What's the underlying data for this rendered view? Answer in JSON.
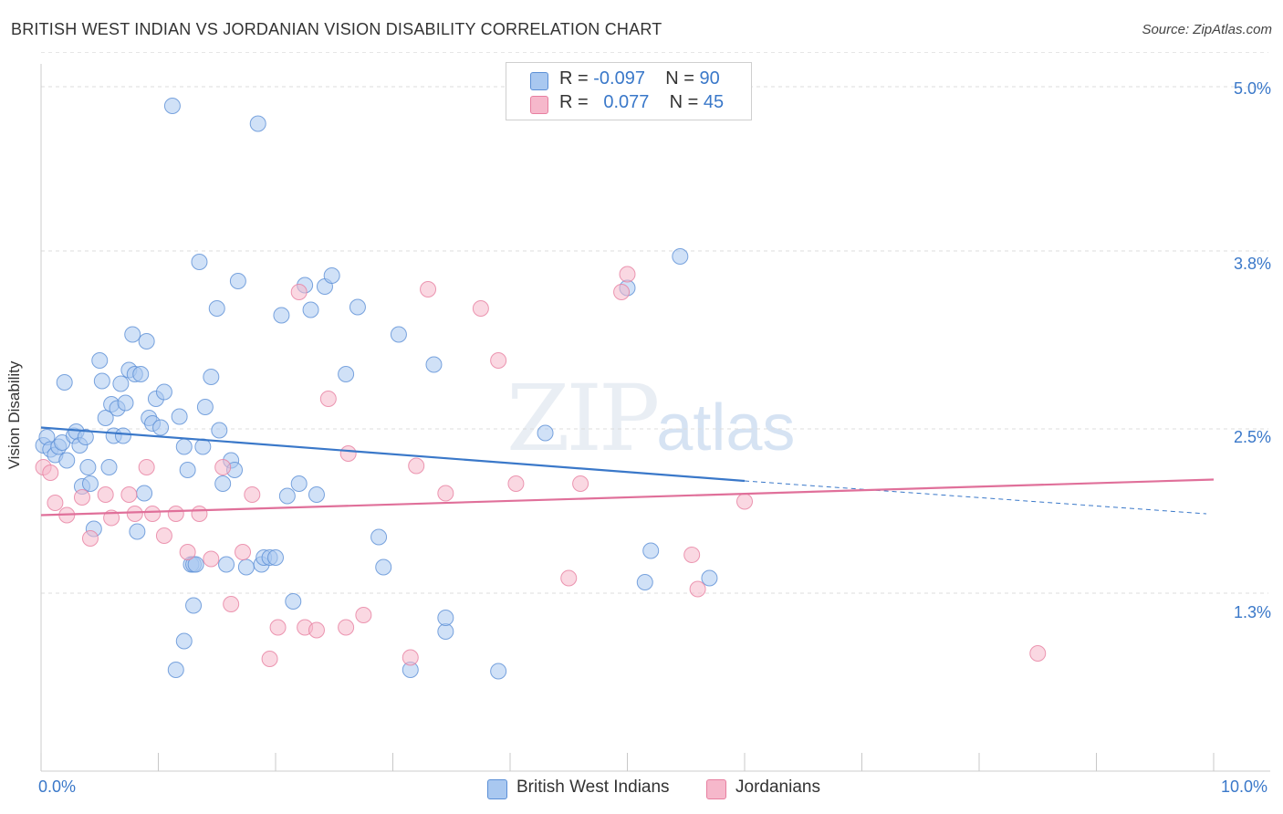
{
  "title": "BRITISH WEST INDIAN VS JORDANIAN VISION DISABILITY CORRELATION CHART",
  "source": "Source: ZipAtlas.com",
  "watermark": {
    "zip": "ZIP",
    "atlas": "atlas"
  },
  "legend": {
    "rows": [
      {
        "r_label": "R =",
        "r_value": "-0.097",
        "n_label": "N =",
        "n_value": "90",
        "color": "#a9c8f0"
      },
      {
        "r_label": "R =",
        "r_value": " 0.077",
        "n_label": "N =",
        "n_value": "45",
        "color": "#f6b8cb"
      }
    ]
  },
  "bottom_legend": [
    {
      "label": "British West Indians",
      "color": "#a9c8f0"
    },
    {
      "label": "Jordanians",
      "color": "#f6b8cb"
    }
  ],
  "chart_data": {
    "type": "scatter",
    "title": "BRITISH WEST INDIAN VS JORDANIAN VISION DISABILITY CORRELATION CHART",
    "xlabel": "",
    "ylabel": "Vision Disability",
    "xlim": [
      0,
      10
    ],
    "ylim": [
      0,
      5.25
    ],
    "x_tick_labels": [
      "0.0%",
      "10.0%"
    ],
    "y_ticks": [
      1.3,
      2.5,
      3.8,
      5.0
    ],
    "y_tick_labels": [
      "1.3%",
      "2.5%",
      "3.8%",
      "5.0%"
    ],
    "grid": "horizontal dashed",
    "legend_position": "top-center",
    "series": [
      {
        "name": "British West Indians",
        "color": "#5b8fd6",
        "fill": "#a9c8f0",
        "trend": {
          "x0": 0.0,
          "y0": 2.51,
          "x1": 6.0,
          "y1": 2.12,
          "dashed_to_x": 10.0,
          "dashed_to_y": 1.88
        },
        "points": [
          [
            0.02,
            2.38
          ],
          [
            0.05,
            2.44
          ],
          [
            0.08,
            2.35
          ],
          [
            0.12,
            2.31
          ],
          [
            0.15,
            2.37
          ],
          [
            0.18,
            2.4
          ],
          [
            0.2,
            2.84
          ],
          [
            0.22,
            2.27
          ],
          [
            0.28,
            2.45
          ],
          [
            0.3,
            2.48
          ],
          [
            0.33,
            2.38
          ],
          [
            0.35,
            2.08
          ],
          [
            0.38,
            2.44
          ],
          [
            0.4,
            2.22
          ],
          [
            0.42,
            2.1
          ],
          [
            0.45,
            1.77
          ],
          [
            0.5,
            3.0
          ],
          [
            0.52,
            2.85
          ],
          [
            0.55,
            2.58
          ],
          [
            0.58,
            2.22
          ],
          [
            0.6,
            2.68
          ],
          [
            0.62,
            2.45
          ],
          [
            0.65,
            2.65
          ],
          [
            0.68,
            2.83
          ],
          [
            0.7,
            2.45
          ],
          [
            0.72,
            2.69
          ],
          [
            0.75,
            2.93
          ],
          [
            0.78,
            3.19
          ],
          [
            0.8,
            2.9
          ],
          [
            0.82,
            1.75
          ],
          [
            0.85,
            2.9
          ],
          [
            0.88,
            2.03
          ],
          [
            0.9,
            3.14
          ],
          [
            0.92,
            2.58
          ],
          [
            0.95,
            2.54
          ],
          [
            0.98,
            2.72
          ],
          [
            1.02,
            2.51
          ],
          [
            1.05,
            2.77
          ],
          [
            1.12,
            4.86
          ],
          [
            1.18,
            2.59
          ],
          [
            1.22,
            2.37
          ],
          [
            1.25,
            2.2
          ],
          [
            1.28,
            1.51
          ],
          [
            1.3,
            1.51
          ],
          [
            1.3,
            1.21
          ],
          [
            1.32,
            1.51
          ],
          [
            1.35,
            3.72
          ],
          [
            1.38,
            2.37
          ],
          [
            1.4,
            2.66
          ],
          [
            1.45,
            2.88
          ],
          [
            1.5,
            3.38
          ],
          [
            1.52,
            2.49
          ],
          [
            1.55,
            2.1
          ],
          [
            1.58,
            1.51
          ],
          [
            1.62,
            2.27
          ],
          [
            1.65,
            2.2
          ],
          [
            1.68,
            3.58
          ],
          [
            1.75,
            1.49
          ],
          [
            1.85,
            4.73
          ],
          [
            1.88,
            1.51
          ],
          [
            1.9,
            1.56
          ],
          [
            1.95,
            1.56
          ],
          [
            2.0,
            1.56
          ],
          [
            2.05,
            3.33
          ],
          [
            2.1,
            2.01
          ],
          [
            2.15,
            1.24
          ],
          [
            2.2,
            2.1
          ],
          [
            2.25,
            3.55
          ],
          [
            2.3,
            3.37
          ],
          [
            2.35,
            2.02
          ],
          [
            2.42,
            3.54
          ],
          [
            2.48,
            3.62
          ],
          [
            2.6,
            2.9
          ],
          [
            2.7,
            3.39
          ],
          [
            2.88,
            1.71
          ],
          [
            2.92,
            1.49
          ],
          [
            3.05,
            3.19
          ],
          [
            3.15,
            0.74
          ],
          [
            3.35,
            2.97
          ],
          [
            3.45,
            1.02
          ],
          [
            3.45,
            1.12
          ],
          [
            3.9,
            0.73
          ],
          [
            4.3,
            2.47
          ],
          [
            5.0,
            3.53
          ],
          [
            5.15,
            1.38
          ],
          [
            5.2,
            1.61
          ],
          [
            5.45,
            3.76
          ],
          [
            5.7,
            1.41
          ],
          [
            1.22,
            0.95
          ],
          [
            1.15,
            0.74
          ]
        ]
      },
      {
        "name": "Jordanians",
        "color": "#e77fa0",
        "fill": "#f6b8cb",
        "trend": {
          "x0": 0.0,
          "y0": 1.87,
          "x1": 10.0,
          "y1": 2.13
        },
        "points": [
          [
            0.02,
            2.22
          ],
          [
            0.08,
            2.18
          ],
          [
            0.12,
            1.96
          ],
          [
            0.22,
            1.87
          ],
          [
            0.35,
            2.0
          ],
          [
            0.42,
            1.7
          ],
          [
            0.55,
            2.02
          ],
          [
            0.6,
            1.85
          ],
          [
            0.75,
            2.02
          ],
          [
            0.8,
            1.88
          ],
          [
            0.9,
            2.22
          ],
          [
            0.95,
            1.88
          ],
          [
            1.05,
            1.72
          ],
          [
            1.15,
            1.88
          ],
          [
            1.25,
            1.6
          ],
          [
            1.35,
            1.88
          ],
          [
            1.45,
            1.55
          ],
          [
            1.55,
            2.22
          ],
          [
            1.62,
            1.22
          ],
          [
            1.72,
            1.6
          ],
          [
            1.8,
            2.02
          ],
          [
            1.95,
            0.82
          ],
          [
            2.02,
            1.05
          ],
          [
            2.2,
            3.5
          ],
          [
            2.25,
            1.05
          ],
          [
            2.35,
            1.03
          ],
          [
            2.45,
            2.72
          ],
          [
            2.6,
            1.05
          ],
          [
            2.62,
            2.32
          ],
          [
            2.75,
            1.14
          ],
          [
            3.15,
            0.83
          ],
          [
            3.2,
            2.23
          ],
          [
            3.3,
            3.52
          ],
          [
            3.45,
            2.03
          ],
          [
            3.75,
            3.38
          ],
          [
            3.9,
            3.0
          ],
          [
            4.05,
            2.1
          ],
          [
            4.5,
            1.41
          ],
          [
            4.6,
            2.1
          ],
          [
            4.95,
            3.5
          ],
          [
            5.0,
            3.63
          ],
          [
            5.55,
            1.58
          ],
          [
            5.6,
            1.33
          ],
          [
            6.0,
            1.97
          ],
          [
            8.5,
            0.86
          ]
        ]
      }
    ]
  }
}
